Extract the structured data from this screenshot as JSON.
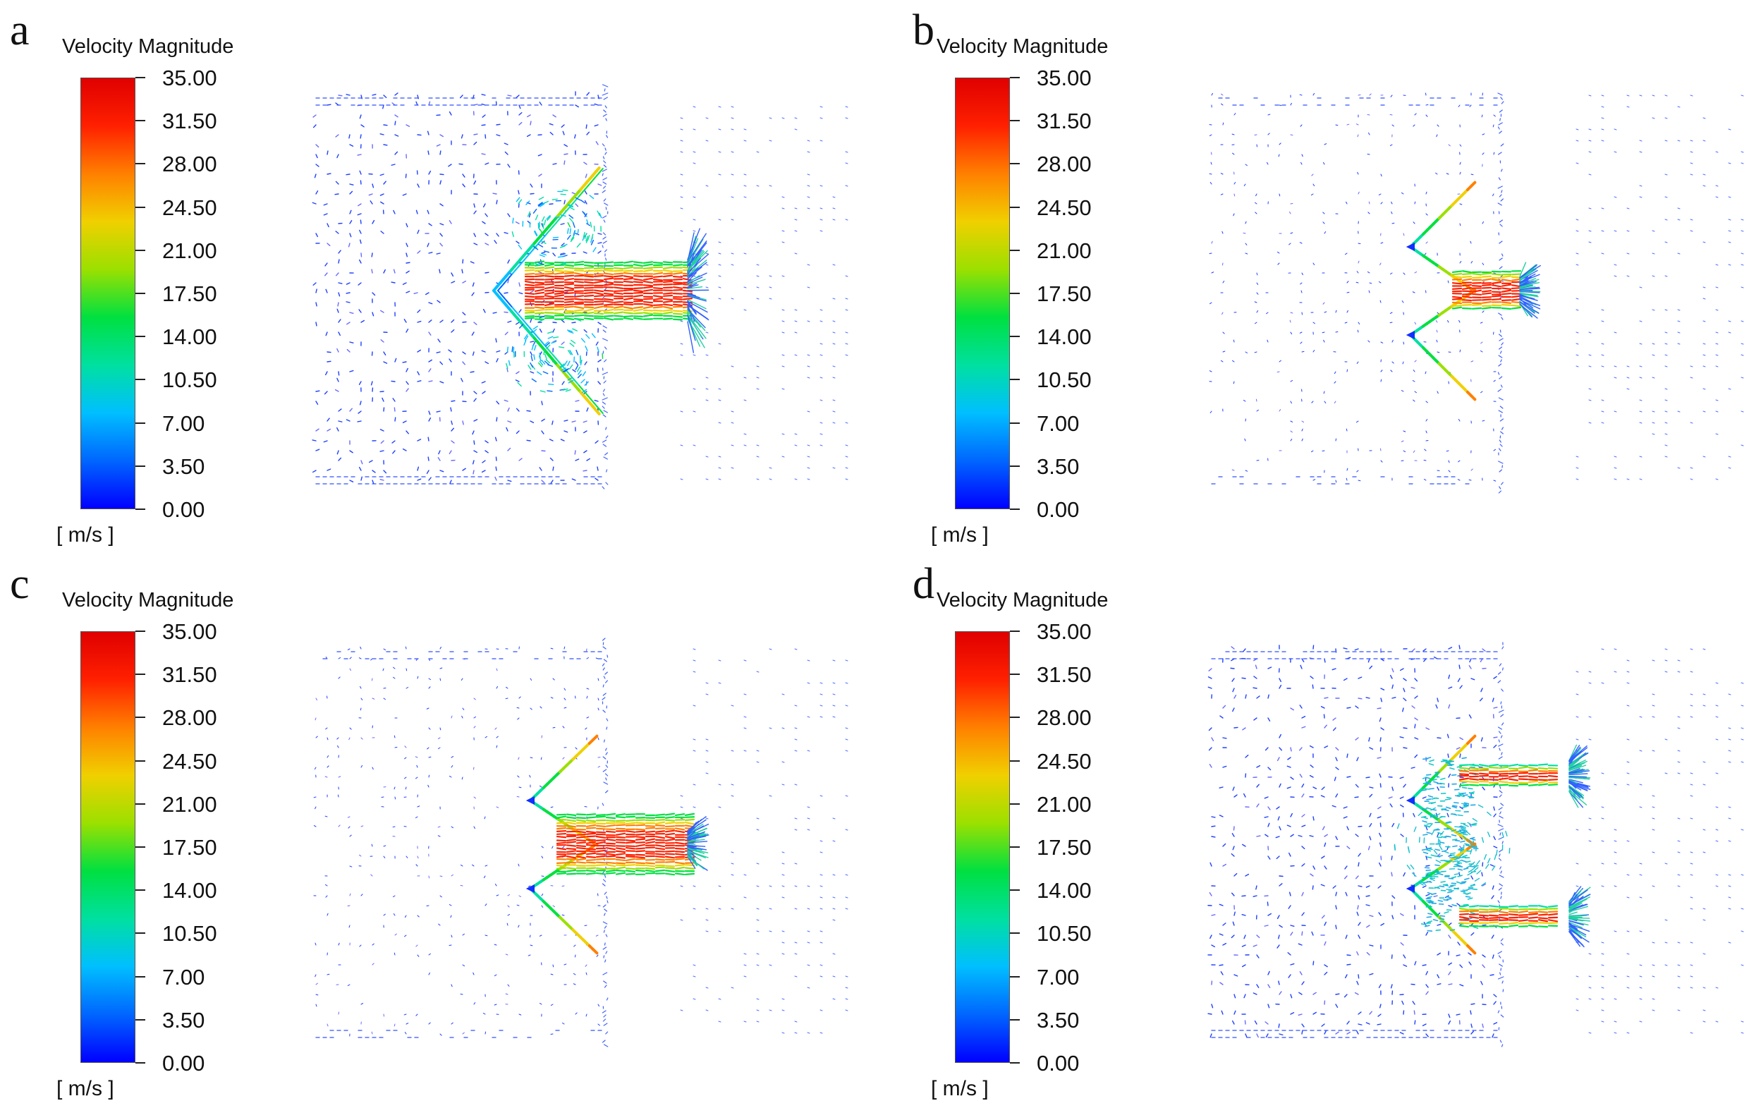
{
  "figure": {
    "legend_title": "Velocity Magnitude",
    "units": "[ m/s ]",
    "tick_values": [
      "35.00",
      "31.50",
      "28.00",
      "24.50",
      "21.00",
      "17.50",
      "14.00",
      "10.50",
      "7.00",
      "3.50",
      "0.00"
    ],
    "colormap": [
      "#0000ff",
      "#0066ff",
      "#00bfff",
      "#00e0a0",
      "#00e040",
      "#9be000",
      "#f0d000",
      "#ff8000",
      "#ff2000",
      "#e00000"
    ],
    "panels": [
      {
        "letter": "a",
        "variant": "single-large-outlet"
      },
      {
        "letter": "b",
        "variant": "double-cone-small-outlet"
      },
      {
        "letter": "c",
        "variant": "double-cone-wide-outlet"
      },
      {
        "letter": "d",
        "variant": "double-cone-twin-outlets"
      }
    ]
  }
}
